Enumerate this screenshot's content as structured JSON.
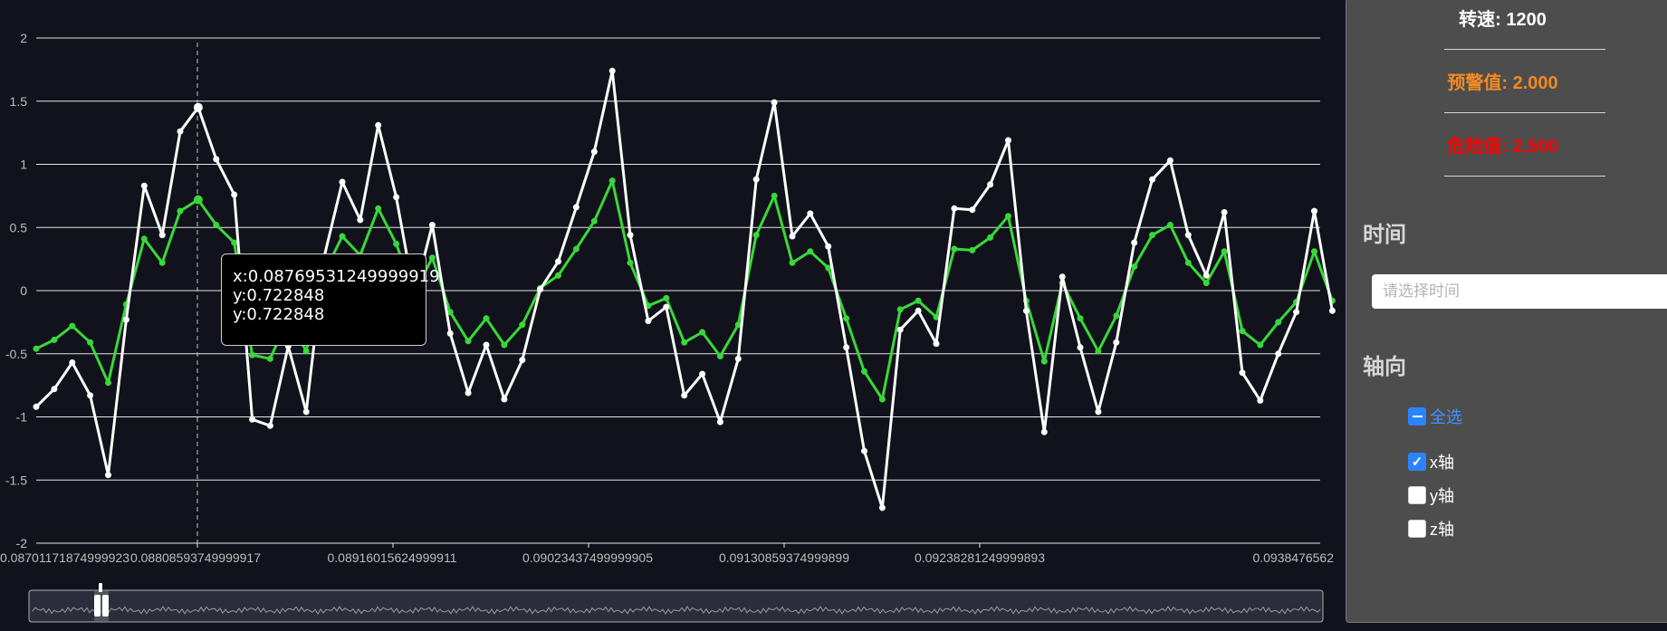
{
  "chart_data": {
    "type": "line",
    "ylim": [
      -2,
      2
    ],
    "y_ticks": [
      "2",
      "1.5",
      "1",
      "0.5",
      "0",
      "-0.5",
      "-1",
      "-1.5",
      "-2"
    ],
    "x_tick_labels": [
      "0.08701171874999923",
      "0.08808593749999917",
      "0.08916015624999911",
      "0.09023437499999905",
      "0.09130859374999899",
      "0.09238281249999893",
      "0.0938476562"
    ],
    "grid": true,
    "colors": {
      "white_series": "#ffffff",
      "green_series": "#39d83a",
      "background": "#11121b",
      "grid": "#e6e6e6"
    },
    "series": [
      {
        "color": "#ffffff",
        "values": [
          -0.92,
          -0.78,
          -0.57,
          -0.83,
          -1.46,
          -0.23,
          0.83,
          0.44,
          1.26,
          1.45,
          1.04,
          0.76,
          -1.02,
          -1.07,
          -0.44,
          -0.96,
          0.27,
          0.86,
          0.56,
          1.31,
          0.74,
          -0.04,
          0.52,
          -0.34,
          -0.81,
          -0.43,
          -0.86,
          -0.55,
          0.01,
          0.23,
          0.66,
          1.1,
          1.74,
          0.44,
          -0.24,
          -0.13,
          -0.83,
          -0.66,
          -1.04,
          -0.54,
          0.88,
          1.49,
          0.43,
          0.61,
          0.35,
          -0.45,
          -1.27,
          -1.72,
          -0.31,
          -0.16,
          -0.42,
          0.65,
          0.64,
          0.84,
          1.19,
          -0.16,
          -1.12,
          0.11,
          -0.45,
          -0.96,
          -0.41,
          0.38,
          0.88,
          1.03,
          0.44,
          0.12,
          0.62,
          -0.65,
          -0.87,
          -0.5,
          -0.17,
          0.63,
          -0.16
        ]
      },
      {
        "color": "#39d83a",
        "values": [
          -0.46,
          -0.39,
          -0.28,
          -0.41,
          -0.73,
          -0.11,
          0.41,
          0.22,
          0.63,
          0.72,
          0.52,
          0.38,
          -0.51,
          -0.54,
          -0.22,
          -0.48,
          0.14,
          0.43,
          0.28,
          0.65,
          0.37,
          -0.02,
          0.26,
          -0.17,
          -0.4,
          -0.22,
          -0.43,
          -0.27,
          0.02,
          0.12,
          0.33,
          0.55,
          0.87,
          0.22,
          -0.12,
          -0.06,
          -0.41,
          -0.33,
          -0.52,
          -0.27,
          0.44,
          0.75,
          0.22,
          0.31,
          0.18,
          -0.22,
          -0.64,
          -0.86,
          -0.15,
          -0.08,
          -0.21,
          0.33,
          0.32,
          0.42,
          0.59,
          -0.08,
          -0.56,
          0.06,
          -0.22,
          -0.48,
          -0.2,
          0.19,
          0.44,
          0.52,
          0.22,
          0.06,
          0.31,
          -0.32,
          -0.43,
          -0.25,
          -0.09,
          0.31,
          -0.08
        ]
      }
    ]
  },
  "tooltip": {
    "x_line": "x:0.08769531249999919",
    "y_line_1": "y:0.722848",
    "y_line_2": "y:0.722848"
  },
  "panel": {
    "speed": "转速: 1200",
    "warning": "预警值: 2.000",
    "danger": "危险值: 2.500",
    "time_title": "时间",
    "time_placeholder": "请选择时间",
    "axis_title": "轴向",
    "select_all": "全选",
    "axis_x": "x轴",
    "axis_y": "y轴",
    "axis_z": "z轴",
    "colors": {
      "speed": "#ffffff",
      "warning": "#f08a24",
      "danger": "#ff0000",
      "select_all": "#3f94ff",
      "checkbox": "#2a84ff"
    }
  }
}
